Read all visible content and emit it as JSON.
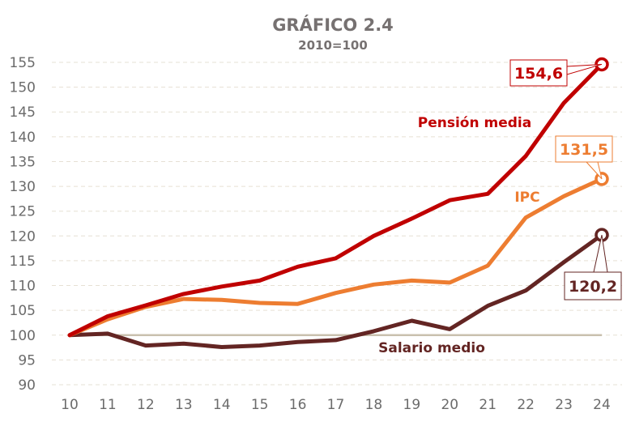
{
  "chart_data": {
    "type": "line",
    "title": "GRÁFICO 2.4",
    "subtitle": "2010=100",
    "xlabel": "",
    "ylabel": "",
    "x": [
      "10",
      "11",
      "12",
      "13",
      "14",
      "15",
      "16",
      "17",
      "18",
      "19",
      "20",
      "21",
      "22",
      "23",
      "24"
    ],
    "yticks": [
      "90",
      "95",
      "100",
      "105",
      "110",
      "115",
      "120",
      "125",
      "130",
      "135",
      "140",
      "145",
      "150",
      "155"
    ],
    "ylim": [
      90,
      155
    ],
    "grid": true,
    "reference_line": 100,
    "series": [
      {
        "name": "Pensión media",
        "color": "#C00000",
        "values": [
          100,
          103.8,
          106.0,
          108.3,
          109.8,
          111.0,
          113.8,
          115.5,
          120.0,
          123.5,
          127.2,
          128.5,
          136.1,
          146.8,
          154.6
        ],
        "end_label": "154,6"
      },
      {
        "name": "IPC",
        "color": "#ED7D31",
        "values": [
          100,
          103.2,
          105.7,
          107.3,
          107.1,
          106.5,
          106.3,
          108.5,
          110.2,
          111.0,
          110.6,
          114.0,
          123.7,
          128.0,
          131.5
        ],
        "end_label": "131,5"
      },
      {
        "name": "Salario medio",
        "color": "#632523",
        "values": [
          100,
          100.3,
          97.9,
          98.3,
          97.6,
          97.9,
          98.6,
          99.0,
          100.8,
          102.9,
          101.2,
          105.9,
          109.0,
          114.7,
          120.2
        ],
        "end_label": "120,2"
      }
    ],
    "colors": {
      "grid": "#E6E0D4",
      "reference_line": "#C9C0AE",
      "tick_text": "#6B6B6B",
      "title": "#767171"
    }
  }
}
